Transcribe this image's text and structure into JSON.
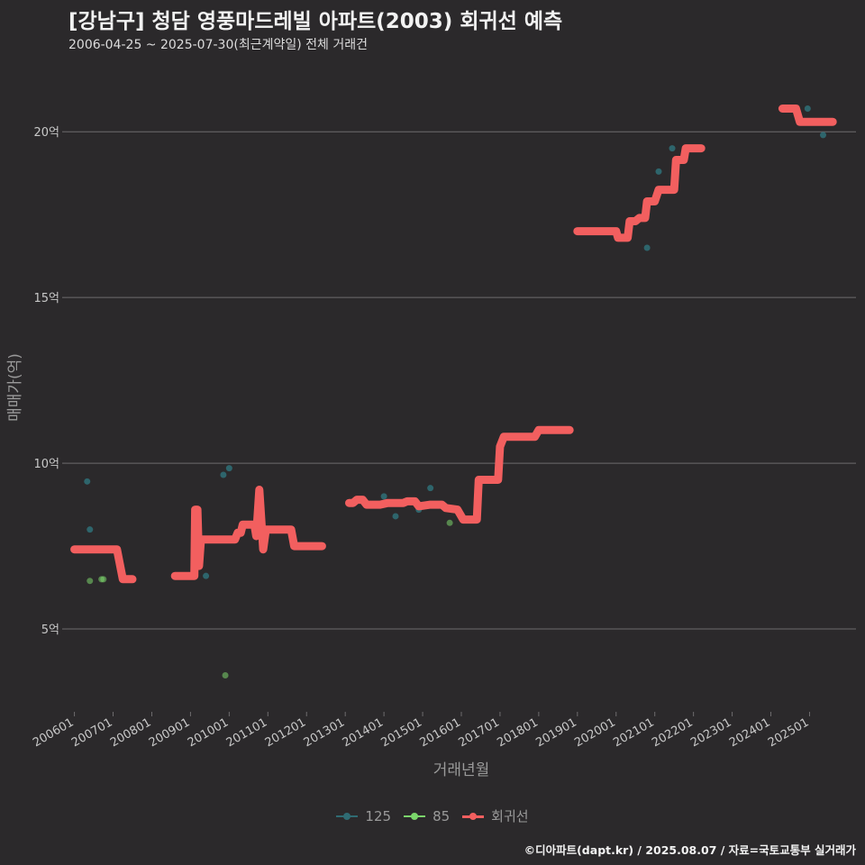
{
  "header": {
    "title": "[강남구] 청담 영풍마드레빌 아파트(2003) 회귀선 예측",
    "subtitle": "2006-04-25 ~ 2025-07-30(최근계약일) 전체 거래건"
  },
  "caption": "©디아파트(dapt.kr) / 2025.08.07 / 자료=국토교통부 실거래가",
  "colors": {
    "background": "#2b292b",
    "grid": "#6e6c6e",
    "s125": "#2f6b73",
    "s85": "#7bd66b",
    "regression": "#f25f5f"
  },
  "chart_data": {
    "type": "scatter",
    "title": "[강남구] 청담 영풍마드레빌 아파트(2003) 회귀선 예측",
    "xlabel": "거래년월",
    "ylabel": "매매가(억)",
    "xlim": [
      2005.8,
      2026.2
    ],
    "ylim": [
      2.5,
      21.8
    ],
    "x_ticks": [
      {
        "value": 2006,
        "label": "200601"
      },
      {
        "value": 2007,
        "label": "200701"
      },
      {
        "value": 2008,
        "label": "200801"
      },
      {
        "value": 2009,
        "label": "200901"
      },
      {
        "value": 2010,
        "label": "201001"
      },
      {
        "value": 2011,
        "label": "201101"
      },
      {
        "value": 2012,
        "label": "201201"
      },
      {
        "value": 2013,
        "label": "201301"
      },
      {
        "value": 2014,
        "label": "201401"
      },
      {
        "value": 2015,
        "label": "201501"
      },
      {
        "value": 2016,
        "label": "201601"
      },
      {
        "value": 2017,
        "label": "201701"
      },
      {
        "value": 2018,
        "label": "201801"
      },
      {
        "value": 2019,
        "label": "201901"
      },
      {
        "value": 2020,
        "label": "202001"
      },
      {
        "value": 2021,
        "label": "202101"
      },
      {
        "value": 2022,
        "label": "202201"
      },
      {
        "value": 2023,
        "label": "202301"
      },
      {
        "value": 2024,
        "label": "202401"
      },
      {
        "value": 2025,
        "label": "202501"
      }
    ],
    "y_ticks": [
      {
        "value": 5,
        "label": "5억"
      },
      {
        "value": 10,
        "label": "10억"
      },
      {
        "value": 15,
        "label": "15억"
      },
      {
        "value": 20,
        "label": "20억"
      }
    ],
    "legend": [
      "125",
      "85",
      "회귀선"
    ],
    "legend_position": "bottom",
    "series": [
      {
        "name": "125",
        "kind": "points",
        "points": [
          [
            2006.33,
            9.45
          ],
          [
            2006.4,
            8.0
          ],
          [
            2009.4,
            6.6
          ],
          [
            2009.85,
            9.65
          ],
          [
            2010.0,
            9.85
          ],
          [
            2014.0,
            9.0
          ],
          [
            2014.3,
            8.4
          ],
          [
            2014.9,
            8.6
          ],
          [
            2015.2,
            9.25
          ],
          [
            2020.8,
            16.5
          ],
          [
            2021.1,
            18.8
          ],
          [
            2021.45,
            19.5
          ],
          [
            2024.95,
            20.7
          ],
          [
            2025.35,
            19.9
          ]
        ]
      },
      {
        "name": "85",
        "kind": "points",
        "points": [
          [
            2006.4,
            6.45
          ],
          [
            2006.7,
            6.5
          ],
          [
            2006.75,
            6.5
          ],
          [
            2009.9,
            3.6
          ],
          [
            2015.7,
            8.2
          ]
        ]
      },
      {
        "name": "회귀선",
        "kind": "step-line",
        "segments": [
          [
            [
              2006.0,
              7.4
            ],
            [
              2007.0,
              7.4
            ],
            [
              2007.1,
              7.4
            ],
            [
              2007.25,
              6.5
            ],
            [
              2007.5,
              6.5
            ]
          ],
          [
            [
              2008.6,
              6.6
            ],
            [
              2009.0,
              6.6
            ],
            [
              2009.1,
              6.6
            ],
            [
              2009.12,
              8.6
            ],
            [
              2009.18,
              8.6
            ],
            [
              2009.22,
              6.9
            ],
            [
              2009.27,
              7.7
            ],
            [
              2009.5,
              7.7
            ],
            [
              2010.0,
              7.7
            ],
            [
              2010.15,
              7.7
            ],
            [
              2010.22,
              7.9
            ],
            [
              2010.3,
              7.9
            ],
            [
              2010.35,
              8.15
            ],
            [
              2010.65,
              8.15
            ],
            [
              2010.7,
              7.8
            ],
            [
              2010.78,
              9.2
            ],
            [
              2010.88,
              7.4
            ],
            [
              2010.95,
              8.0
            ],
            [
              2011.2,
              8.0
            ],
            [
              2011.5,
              8.0
            ],
            [
              2011.6,
              8.0
            ],
            [
              2011.68,
              7.5
            ],
            [
              2012.0,
              7.5
            ],
            [
              2012.4,
              7.5
            ]
          ],
          [
            [
              2013.1,
              8.8
            ],
            [
              2013.2,
              8.8
            ],
            [
              2013.3,
              8.9
            ],
            [
              2013.45,
              8.9
            ],
            [
              2013.55,
              8.75
            ],
            [
              2013.9,
              8.75
            ],
            [
              2014.1,
              8.8
            ],
            [
              2014.5,
              8.8
            ],
            [
              2014.6,
              8.85
            ],
            [
              2014.8,
              8.85
            ],
            [
              2014.9,
              8.7
            ],
            [
              2015.2,
              8.75
            ],
            [
              2015.5,
              8.75
            ],
            [
              2015.6,
              8.65
            ],
            [
              2015.9,
              8.6
            ],
            [
              2016.05,
              8.3
            ],
            [
              2016.4,
              8.3
            ],
            [
              2016.45,
              9.5
            ],
            [
              2016.95,
              9.5
            ],
            [
              2017.0,
              10.5
            ],
            [
              2017.1,
              10.8
            ],
            [
              2017.6,
              10.8
            ],
            [
              2017.9,
              10.8
            ],
            [
              2018.0,
              11.0
            ],
            [
              2018.8,
              11.0
            ]
          ]
        ],
        "segments_cont": [
          [
            [
              2019.0,
              17.0
            ],
            [
              2019.6,
              17.0
            ],
            [
              2020.0,
              17.0
            ],
            [
              2020.05,
              16.8
            ],
            [
              2020.3,
              16.8
            ],
            [
              2020.35,
              17.3
            ],
            [
              2020.5,
              17.3
            ],
            [
              2020.6,
              17.4
            ],
            [
              2020.75,
              17.4
            ],
            [
              2020.8,
              17.9
            ],
            [
              2021.0,
              17.9
            ],
            [
              2021.1,
              18.25
            ],
            [
              2021.5,
              18.25
            ],
            [
              2021.55,
              19.15
            ],
            [
              2021.75,
              19.15
            ],
            [
              2021.8,
              19.5
            ],
            [
              2022.2,
              19.5
            ]
          ],
          [
            [
              2024.3,
              20.7
            ],
            [
              2024.65,
              20.7
            ],
            [
              2024.75,
              20.3
            ],
            [
              2025.6,
              20.3
            ]
          ]
        ]
      }
    ]
  }
}
